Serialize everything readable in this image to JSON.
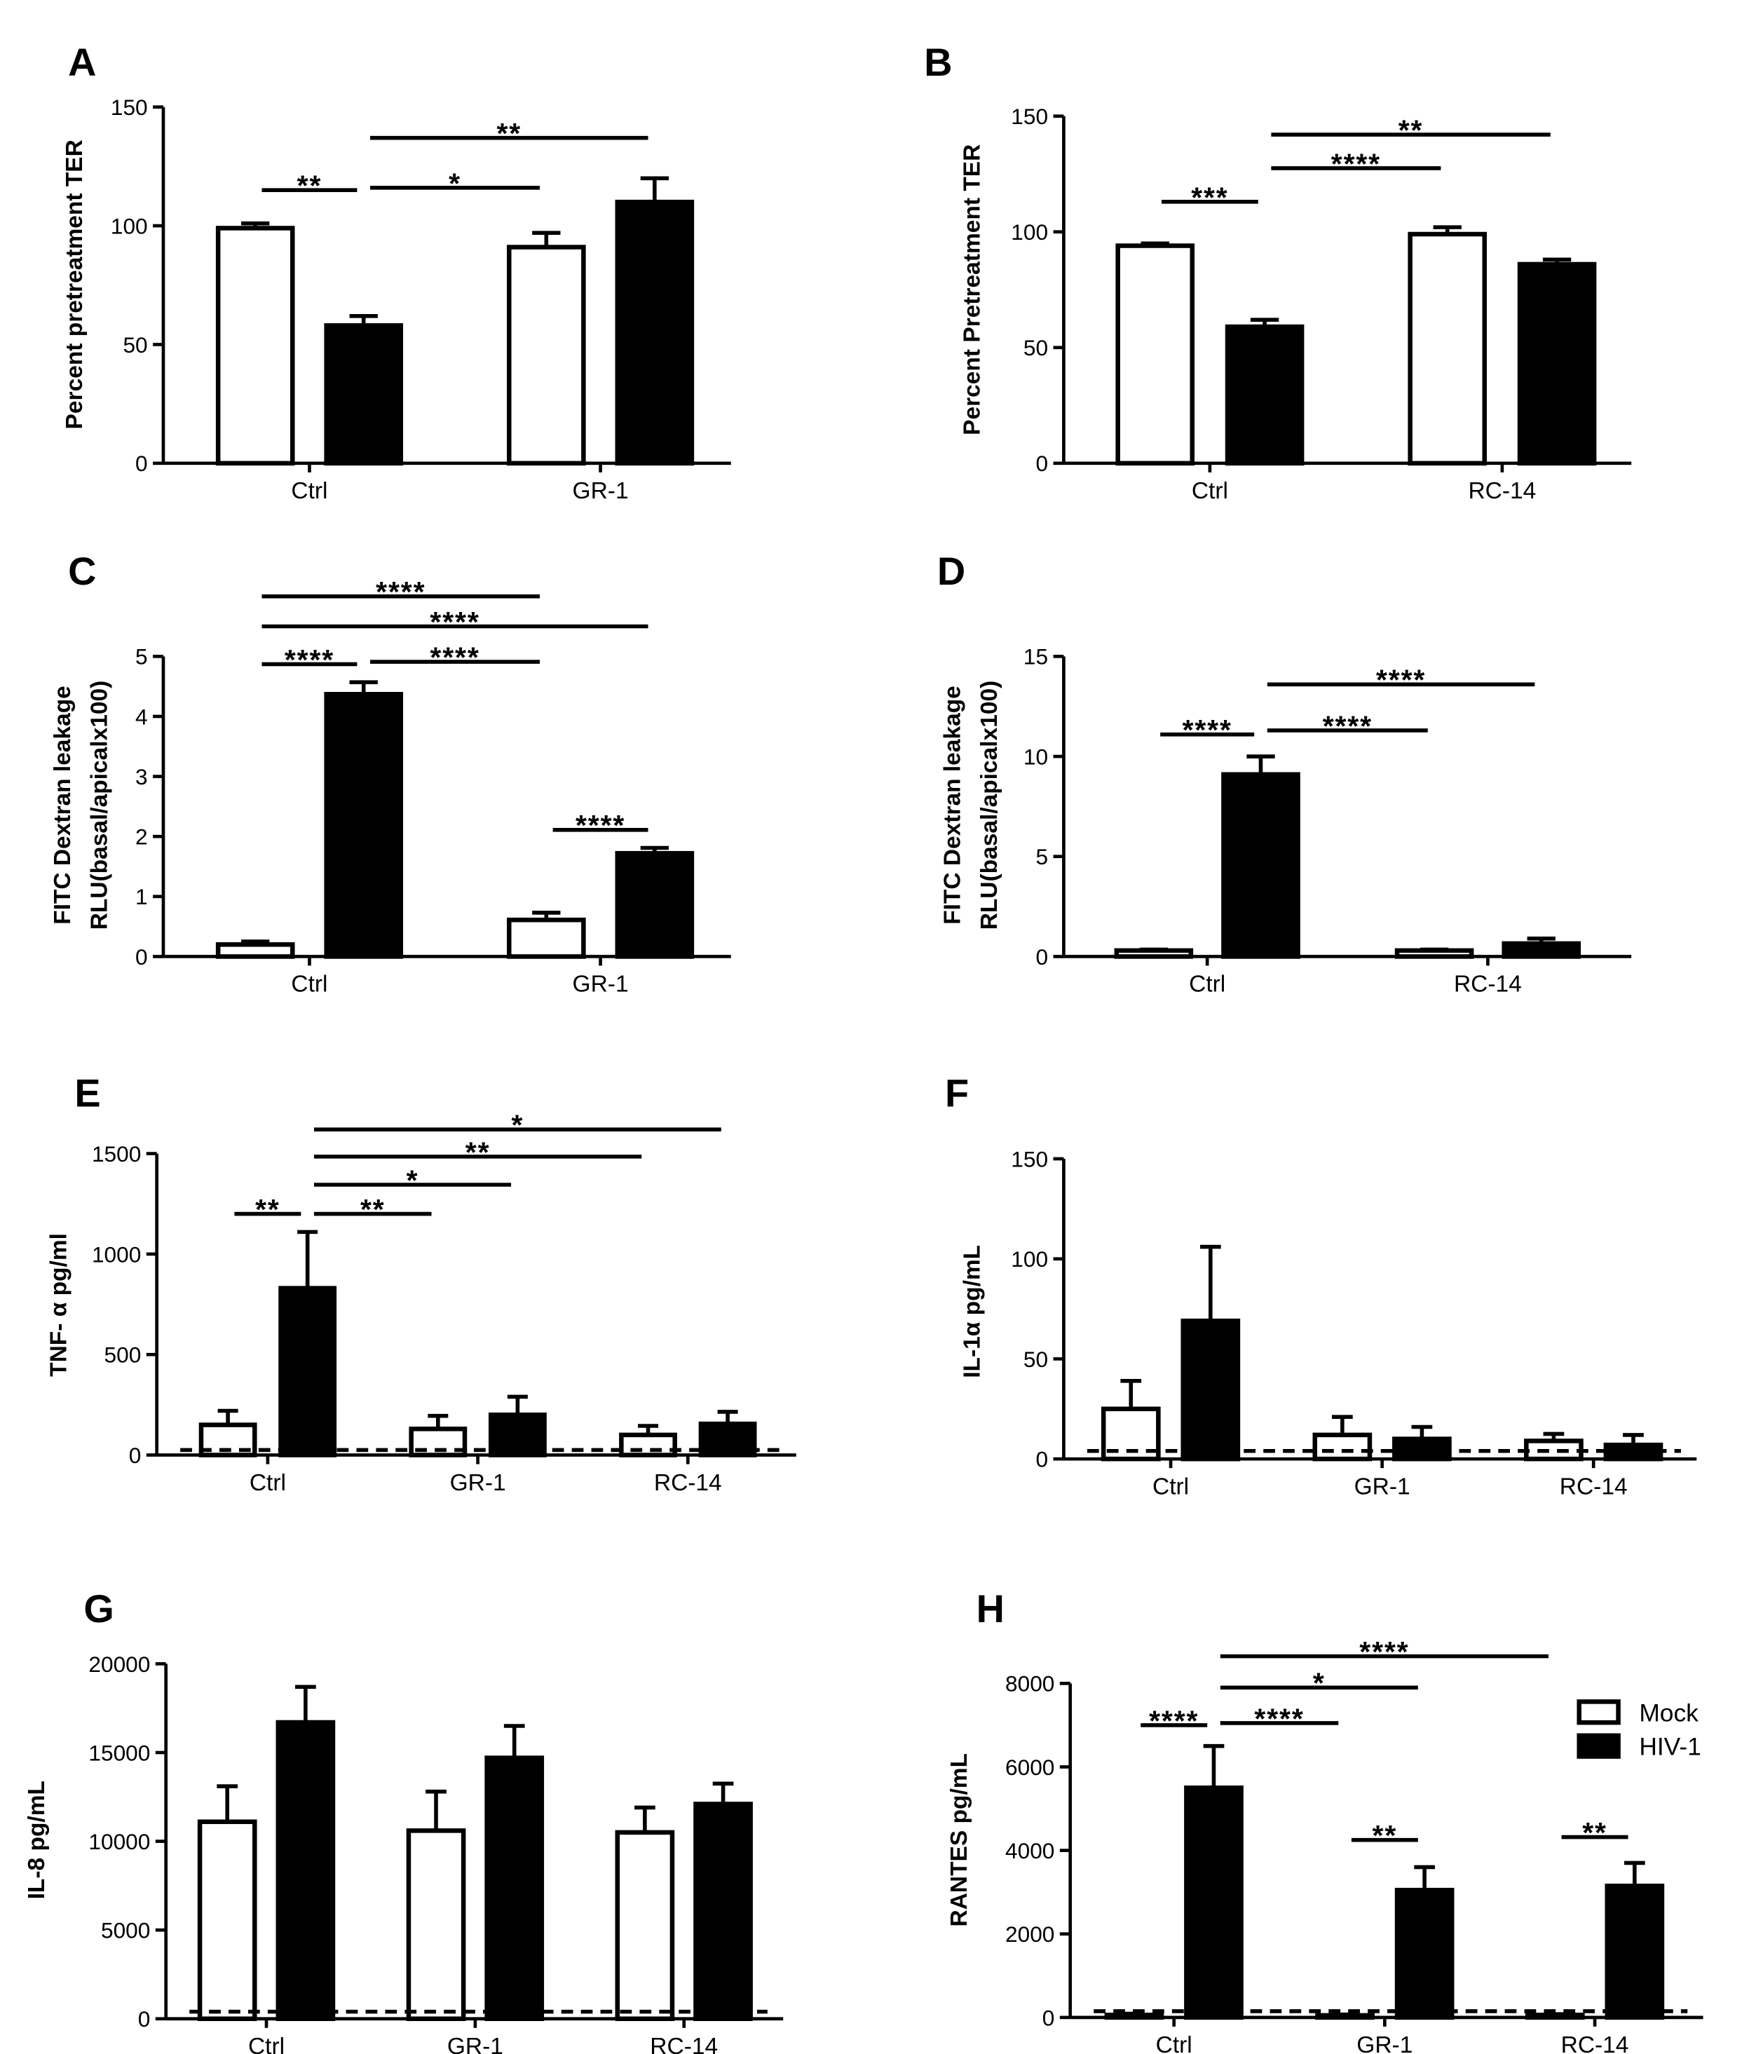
{
  "chart_data": [
    {
      "panel": "A",
      "type": "bar",
      "ylabel": [
        "Percent pretreatment TER"
      ],
      "categories": [
        "Ctrl",
        "GR-1"
      ],
      "series": [
        {
          "values": [
            99,
            91
          ],
          "errors": [
            2,
            6
          ],
          "fill": "#ffffff"
        },
        {
          "values": [
            58,
            110
          ],
          "errors": [
            4,
            10
          ],
          "fill": "#000000"
        }
      ],
      "ylim": [
        0,
        150
      ],
      "yticks": [
        0,
        50,
        100,
        150
      ],
      "significance": [
        {
          "label": "**",
          "from": [
            0,
            0
          ],
          "to": [
            0,
            1
          ],
          "y": 115
        },
        {
          "label": "*",
          "from": [
            0,
            1
          ],
          "to": [
            1,
            0
          ],
          "y": 116
        },
        {
          "label": "**",
          "from": [
            0,
            1
          ],
          "to": [
            1,
            1
          ],
          "y": 137
        }
      ]
    },
    {
      "panel": "B",
      "type": "bar",
      "ylabel": [
        "Percent Pretreatment TER"
      ],
      "categories": [
        "Ctrl",
        "RC-14"
      ],
      "series": [
        {
          "values": [
            94,
            99
          ],
          "errors": [
            1,
            3
          ],
          "fill": "#ffffff"
        },
        {
          "values": [
            59,
            86
          ],
          "errors": [
            3,
            2
          ],
          "fill": "#000000"
        }
      ],
      "ylim": [
        0,
        150
      ],
      "yticks": [
        0,
        50,
        100,
        150
      ],
      "significance": [
        {
          "label": "***",
          "from": [
            0,
            0
          ],
          "to": [
            0,
            1
          ],
          "y": 113
        },
        {
          "label": "****",
          "from": [
            0,
            1
          ],
          "to": [
            1,
            0
          ],
          "y": 127.5
        },
        {
          "label": "**",
          "from": [
            0,
            1
          ],
          "to": [
            1,
            1
          ],
          "y": 142
        }
      ]
    },
    {
      "panel": "C",
      "type": "bar",
      "ylabel": [
        "FITC Dextran leakage",
        "RLU(basal/apicalx100)"
      ],
      "categories": [
        "Ctrl",
        "GR-1"
      ],
      "series": [
        {
          "values": [
            0.2,
            0.61
          ],
          "errors": [
            0.05,
            0.12
          ],
          "fill": "#ffffff"
        },
        {
          "values": [
            4.37,
            1.72
          ],
          "errors": [
            0.2,
            0.09
          ],
          "fill": "#000000"
        }
      ],
      "ylim": [
        0,
        5
      ],
      "yticks": [
        0,
        1,
        2,
        3,
        4,
        5
      ],
      "significance": [
        {
          "label": "****",
          "from": [
            0,
            0
          ],
          "to": [
            0,
            1
          ],
          "y": 4.87
        },
        {
          "label": "****",
          "from": [
            0,
            1
          ],
          "to": [
            1,
            0
          ],
          "y": 4.91
        },
        {
          "label": "****",
          "from": [
            0,
            0
          ],
          "to": [
            1,
            1
          ],
          "y": 5.5
        },
        {
          "label": "****",
          "from": [
            0,
            0
          ],
          "to": [
            1,
            0
          ],
          "y": 6.0
        },
        {
          "label": "****",
          "from": [
            1,
            0
          ],
          "to": [
            1,
            1
          ],
          "y": 2.11
        }
      ]
    },
    {
      "panel": "D",
      "type": "bar",
      "ylabel": [
        "FITC Dextran leakage",
        "RLU(basal/apicalx100)"
      ],
      "categories": [
        "Ctrl",
        "RC-14"
      ],
      "series": [
        {
          "values": [
            0.3,
            0.3
          ],
          "errors": [
            0.05,
            0.05
          ],
          "fill": "#ffffff"
        },
        {
          "values": [
            9.1,
            0.65
          ],
          "errors": [
            0.9,
            0.25
          ],
          "fill": "#000000"
        }
      ],
      "ylim": [
        0,
        15
      ],
      "yticks": [
        0,
        5,
        10,
        15
      ],
      "significance": [
        {
          "label": "****",
          "from": [
            0,
            0
          ],
          "to": [
            0,
            1
          ],
          "y": 11.1
        },
        {
          "label": "****",
          "from": [
            0,
            1
          ],
          "to": [
            1,
            0
          ],
          "y": 11.3
        },
        {
          "label": "****",
          "from": [
            0,
            1
          ],
          "to": [
            1,
            1
          ],
          "y": 13.6
        }
      ]
    },
    {
      "panel": "E",
      "type": "bar",
      "ylabel": [
        "TNF- α pg/ml"
      ],
      "categories": [
        "Ctrl",
        "GR-1",
        "RC-14"
      ],
      "series": [
        {
          "values": [
            150,
            130,
            100
          ],
          "errors": [
            70,
            65,
            45
          ],
          "fill": "#ffffff"
        },
        {
          "values": [
            830,
            200,
            155
          ],
          "errors": [
            280,
            90,
            60
          ],
          "fill": "#000000"
        }
      ],
      "ylim": [
        0,
        1500
      ],
      "yticks": [
        0,
        500,
        1000,
        1500
      ],
      "reference_line": 25,
      "significance": [
        {
          "label": "**",
          "from": [
            0,
            0
          ],
          "to": [
            0,
            1
          ],
          "y": 1200
        },
        {
          "label": "**",
          "from": [
            0,
            1
          ],
          "to": [
            1,
            0
          ],
          "y": 1200
        },
        {
          "label": "*",
          "from": [
            0,
            1
          ],
          "to": [
            1,
            1
          ],
          "y": 1345
        },
        {
          "label": "**",
          "from": [
            0,
            1
          ],
          "to": [
            2,
            0
          ],
          "y": 1485
        },
        {
          "label": "*",
          "from": [
            0,
            1
          ],
          "to": [
            2,
            1
          ],
          "y": 1620
        }
      ]
    },
    {
      "panel": "F",
      "type": "bar",
      "ylabel": [
        "IL-1α pg/mL"
      ],
      "categories": [
        "Ctrl",
        "GR-1",
        "RC-14"
      ],
      "series": [
        {
          "values": [
            25,
            12,
            9
          ],
          "errors": [
            14,
            9,
            3.5
          ],
          "fill": "#ffffff"
        },
        {
          "values": [
            69,
            10,
            7
          ],
          "errors": [
            37,
            6,
            5
          ],
          "fill": "#000000"
        }
      ],
      "ylim": [
        0,
        150
      ],
      "yticks": [
        0,
        50,
        100,
        150
      ],
      "reference_line": 4,
      "significance": []
    },
    {
      "panel": "G",
      "type": "bar",
      "ylabel": [
        "IL-8 pg/mL"
      ],
      "categories": [
        "Ctrl",
        "GR-1",
        "RC-14"
      ],
      "series": [
        {
          "values": [
            11100,
            10600,
            10500
          ],
          "errors": [
            2000,
            2200,
            1400
          ],
          "fill": "#ffffff"
        },
        {
          "values": [
            16700,
            14700,
            12100
          ],
          "errors": [
            2000,
            1800,
            1150
          ],
          "fill": "#000000"
        }
      ],
      "ylim": [
        0,
        20000
      ],
      "yticks": [
        0,
        5000,
        10000,
        15000,
        20000
      ],
      "reference_line": 400,
      "significance": []
    },
    {
      "panel": "H",
      "type": "bar",
      "ylabel": [
        "RANTES pg/mL"
      ],
      "categories": [
        "Ctrl",
        "GR-1",
        "RC-14"
      ],
      "series": [
        {
          "name": "Mock",
          "values": [
            60,
            50,
            60
          ],
          "errors": [
            30,
            20,
            20
          ],
          "fill": "#ffffff"
        },
        {
          "name": "HIV-1",
          "values": [
            5500,
            3050,
            3150
          ],
          "errors": [
            1000,
            550,
            550
          ],
          "fill": "#000000"
        }
      ],
      "ylim": [
        0,
        8000
      ],
      "yticks": [
        0,
        2000,
        4000,
        6000,
        8000
      ],
      "reference_line": 150,
      "legend_position": "top-right",
      "significance": [
        {
          "label": "****",
          "from": [
            0,
            0
          ],
          "to": [
            0,
            1
          ],
          "y": 7000
        },
        {
          "label": "****",
          "from": [
            0,
            1
          ],
          "to": [
            1,
            0
          ],
          "y": 7050
        },
        {
          "label": "*",
          "from": [
            0,
            1
          ],
          "to": [
            1,
            1
          ],
          "y": 7900
        },
        {
          "label": "****",
          "from": [
            0,
            1
          ],
          "to": [
            2,
            0
          ],
          "y": 8650
        },
        {
          "label": "**",
          "from": [
            1,
            0
          ],
          "to": [
            1,
            1
          ],
          "y": 4250
        },
        {
          "label": "**",
          "from": [
            2,
            0
          ],
          "to": [
            2,
            1
          ],
          "y": 4320
        }
      ]
    }
  ]
}
